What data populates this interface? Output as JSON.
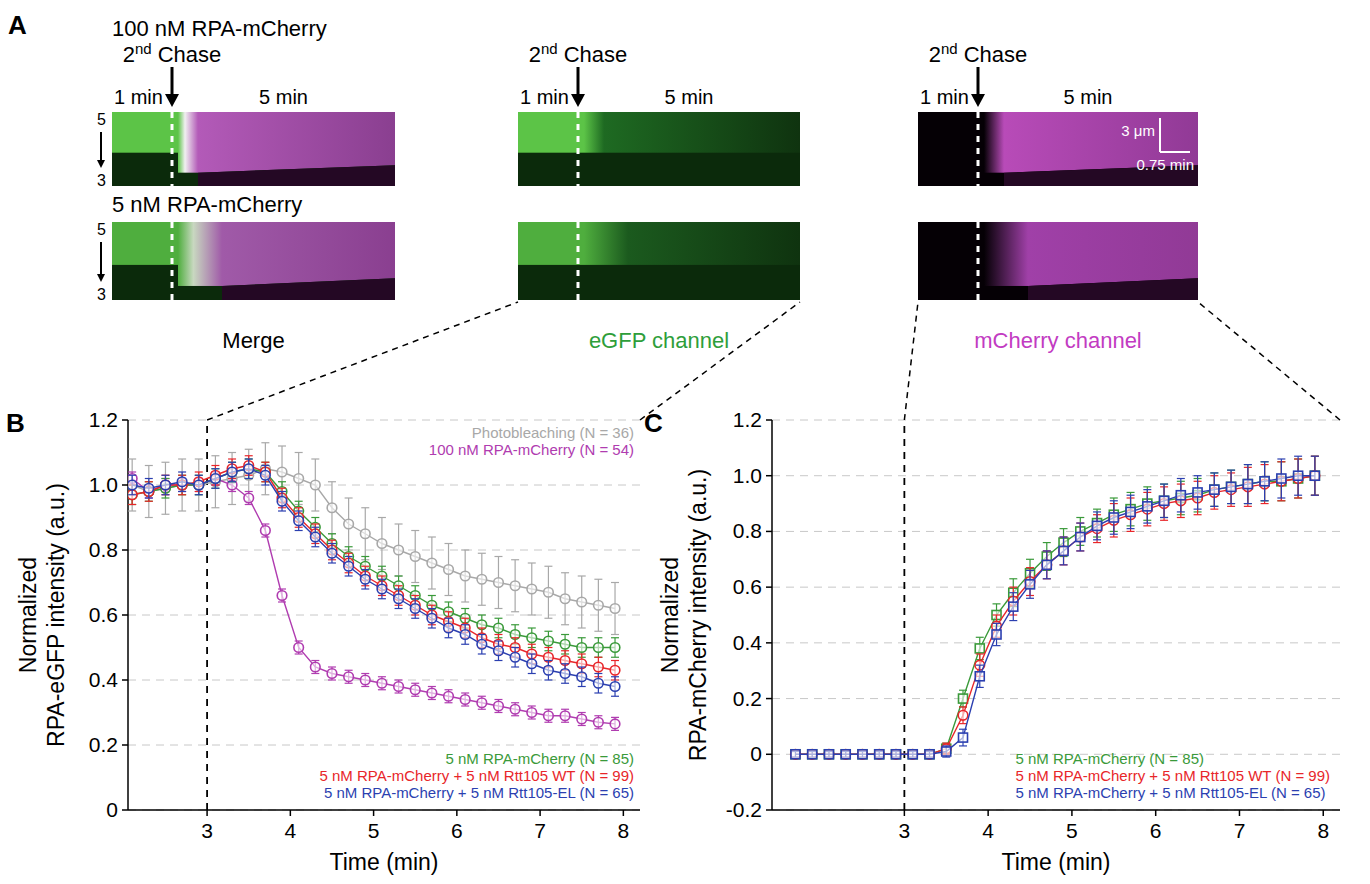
{
  "panel_a": {
    "letter": "A",
    "rows": [
      {
        "title": "100 nM RPA-mCherry"
      },
      {
        "title": "5 nM RPA-mCherry"
      }
    ],
    "columns": [
      {
        "label": "Merge",
        "color": "#000000"
      },
      {
        "label": "eGFP channel",
        "color": "#2e9e3a"
      },
      {
        "label": "mCherry channel",
        "color": "#c23bc2"
      }
    ],
    "chase_label": "2nd Chase",
    "before_label": "1 min",
    "after_label": "5 min",
    "position_top": 5,
    "position_bottom": 3,
    "scale_bar": {
      "length_label": "3 μm",
      "time_label": "0.75 min"
    }
  },
  "chart_data": [
    {
      "type": "line",
      "panel_label": "B",
      "ylabel": "Normalized RPA-eGFP intensity (a.u.)",
      "xlabel": "Time (min)",
      "x": [
        2.1,
        2.3,
        2.5,
        2.7,
        2.9,
        3.1,
        3.3,
        3.5,
        3.7,
        3.9,
        4.1,
        4.3,
        4.5,
        4.7,
        4.9,
        5.1,
        5.3,
        5.5,
        5.7,
        5.9,
        6.1,
        6.3,
        6.5,
        6.7,
        6.9,
        7.1,
        7.3,
        7.5,
        7.7,
        7.9
      ],
      "xlim": [
        2.05,
        8.2
      ],
      "xticks": [
        3,
        4,
        5,
        6,
        7,
        8
      ],
      "ylim": [
        0,
        1.2
      ],
      "yticks": [
        0,
        0.2,
        0.4,
        0.6,
        0.8,
        {
          "value": 1,
          "label": "1.0"
        },
        1.2
      ],
      "grid": true,
      "legend": "right",
      "marker": "circle",
      "vline": 3,
      "series": [
        {
          "name": "Photobleaching (N = 36)",
          "color": "#a8a8a8",
          "values": [
            1.0,
            0.98,
            0.99,
            1.0,
            1.0,
            1.01,
            1.02,
            1.03,
            1.05,
            1.04,
            1.02,
            1.0,
            0.93,
            0.88,
            0.85,
            0.82,
            0.8,
            0.78,
            0.76,
            0.74,
            0.72,
            0.71,
            0.7,
            0.69,
            0.68,
            0.67,
            0.65,
            0.64,
            0.63,
            0.62
          ],
          "errors": [
            0.08,
            0.08,
            0.08,
            0.08,
            0.08,
            0.08,
            0.08,
            0.08,
            0.08,
            0.08,
            0.08,
            0.08,
            0.08,
            0.08,
            0.08,
            0.08,
            0.08,
            0.08,
            0.08,
            0.08,
            0.08,
            0.08,
            0.08,
            0.08,
            0.08,
            0.08,
            0.08,
            0.08,
            0.08,
            0.08
          ]
        },
        {
          "name": "100 nM RPA-mCherry (N = 54)",
          "color": "#b03cb0",
          "values": [
            1.02,
            0.98,
            1.0,
            1.0,
            1.0,
            1.02,
            1.0,
            0.96,
            0.86,
            0.66,
            0.5,
            0.44,
            0.42,
            0.41,
            0.4,
            0.39,
            0.38,
            0.37,
            0.36,
            0.35,
            0.34,
            0.33,
            0.32,
            0.31,
            0.3,
            0.29,
            0.29,
            0.28,
            0.27,
            0.265
          ],
          "errors": [
            0.02,
            0.02,
            0.02,
            0.02,
            0.02,
            0.02,
            0.02,
            0.02,
            0.02,
            0.02,
            0.02,
            0.02,
            0.02,
            0.02,
            0.02,
            0.02,
            0.02,
            0.02,
            0.02,
            0.02,
            0.02,
            0.02,
            0.02,
            0.02,
            0.02,
            0.02,
            0.02,
            0.02,
            0.02,
            0.02
          ]
        },
        {
          "name": "5 nM RPA-mCherry (N = 85)",
          "color": "#3a9a3a",
          "values": [
            0.97,
            0.98,
            0.99,
            1.0,
            1.0,
            1.02,
            1.04,
            1.05,
            1.04,
            0.98,
            0.92,
            0.87,
            0.82,
            0.78,
            0.75,
            0.72,
            0.69,
            0.66,
            0.63,
            0.61,
            0.59,
            0.57,
            0.56,
            0.54,
            0.53,
            0.52,
            0.51,
            0.5,
            0.5,
            0.5
          ],
          "errors": [
            0.03,
            0.03,
            0.03,
            0.03,
            0.03,
            0.03,
            0.03,
            0.03,
            0.03,
            0.03,
            0.03,
            0.03,
            0.03,
            0.03,
            0.03,
            0.03,
            0.03,
            0.03,
            0.03,
            0.03,
            0.03,
            0.03,
            0.03,
            0.03,
            0.03,
            0.03,
            0.03,
            0.03,
            0.03,
            0.03
          ]
        },
        {
          "name": "5 nM RPA-mCherry + 5 nM Rtt105 WT (N = 99)",
          "color": "#e8262a",
          "values": [
            0.97,
            0.98,
            1.0,
            1.0,
            1.01,
            1.03,
            1.05,
            1.06,
            1.04,
            0.96,
            0.9,
            0.85,
            0.8,
            0.76,
            0.72,
            0.69,
            0.66,
            0.63,
            0.6,
            0.58,
            0.56,
            0.53,
            0.51,
            0.5,
            0.48,
            0.47,
            0.46,
            0.45,
            0.44,
            0.43
          ],
          "errors": [
            0.03,
            0.03,
            0.03,
            0.03,
            0.03,
            0.03,
            0.03,
            0.03,
            0.03,
            0.03,
            0.03,
            0.03,
            0.03,
            0.03,
            0.03,
            0.03,
            0.03,
            0.03,
            0.03,
            0.03,
            0.03,
            0.03,
            0.03,
            0.03,
            0.03,
            0.03,
            0.03,
            0.03,
            0.03,
            0.03
          ]
        },
        {
          "name": "5 nM RPA-mCherry + 5 nM Rtt105-EL (N = 65)",
          "color": "#2b3fb0",
          "values": [
            1.0,
            0.99,
            1.0,
            1.01,
            1.0,
            1.02,
            1.04,
            1.05,
            1.03,
            0.95,
            0.89,
            0.84,
            0.79,
            0.75,
            0.71,
            0.68,
            0.65,
            0.62,
            0.59,
            0.56,
            0.54,
            0.51,
            0.49,
            0.47,
            0.45,
            0.43,
            0.42,
            0.41,
            0.39,
            0.38
          ],
          "errors": [
            0.03,
            0.03,
            0.03,
            0.03,
            0.03,
            0.03,
            0.03,
            0.03,
            0.03,
            0.03,
            0.03,
            0.03,
            0.03,
            0.03,
            0.03,
            0.03,
            0.03,
            0.03,
            0.03,
            0.03,
            0.03,
            0.03,
            0.03,
            0.03,
            0.03,
            0.03,
            0.03,
            0.03,
            0.03,
            0.03
          ]
        }
      ]
    },
    {
      "type": "line",
      "panel_label": "C",
      "ylabel": "Normalized RPA-mCherry intensity (a.u.)",
      "xlabel": "Time (min)",
      "x": [
        1.7,
        1.9,
        2.1,
        2.3,
        2.5,
        2.7,
        2.9,
        3.1,
        3.3,
        3.5,
        3.7,
        3.9,
        4.1,
        4.3,
        4.5,
        4.7,
        4.9,
        5.1,
        5.3,
        5.5,
        5.7,
        5.9,
        6.1,
        6.3,
        6.5,
        6.7,
        6.9,
        7.1,
        7.3,
        7.5,
        7.7,
        7.9
      ],
      "xlim": [
        1.42,
        8.2
      ],
      "xticks": [
        3,
        4,
        5,
        6,
        7,
        8
      ],
      "ylim": [
        -0.2,
        1.2
      ],
      "yticks": [
        -0.2,
        0,
        0.2,
        0.4,
        0.6,
        0.8,
        {
          "value": 1,
          "label": "1.0"
        },
        1.2
      ],
      "grid": true,
      "legend": "bottom right",
      "vline": 3,
      "series": [
        {
          "name": "5 nM RPA-mCherry (N = 85)",
          "color": "#3a9a3a",
          "marker": "square",
          "values": [
            0,
            0,
            0,
            0,
            0,
            0,
            0,
            0,
            0,
            0.02,
            0.2,
            0.38,
            0.5,
            0.58,
            0.65,
            0.71,
            0.76,
            0.8,
            0.83,
            0.86,
            0.88,
            0.9,
            0.91,
            0.92,
            0.93,
            0.95,
            0.96,
            0.97,
            0.98,
            0.98,
            0.99,
            1.0
          ],
          "errors": [
            0.01,
            0.01,
            0.01,
            0.01,
            0.01,
            0.01,
            0.01,
            0.01,
            0.01,
            0.02,
            0.03,
            0.04,
            0.04,
            0.05,
            0.05,
            0.05,
            0.05,
            0.05,
            0.05,
            0.06,
            0.06,
            0.06,
            0.06,
            0.06,
            0.06,
            0.06,
            0.06,
            0.07,
            0.07,
            0.07,
            0.07,
            0.07
          ]
        },
        {
          "name": "5 nM RPA-mCherry + 5 nM Rtt105 WT (N = 99)",
          "color": "#e8262a",
          "marker": "circle",
          "values": [
            0,
            0,
            0,
            0,
            0,
            0,
            0,
            0,
            0,
            0.02,
            0.14,
            0.32,
            0.46,
            0.55,
            0.62,
            0.68,
            0.73,
            0.78,
            0.81,
            0.84,
            0.86,
            0.88,
            0.9,
            0.91,
            0.92,
            0.94,
            0.95,
            0.96,
            0.97,
            0.98,
            0.99,
            1.0
          ],
          "errors": [
            0.01,
            0.01,
            0.01,
            0.01,
            0.01,
            0.01,
            0.01,
            0.01,
            0.01,
            0.02,
            0.03,
            0.04,
            0.04,
            0.05,
            0.05,
            0.05,
            0.05,
            0.05,
            0.05,
            0.06,
            0.06,
            0.06,
            0.06,
            0.06,
            0.06,
            0.06,
            0.06,
            0.07,
            0.07,
            0.07,
            0.07,
            0.07
          ]
        },
        {
          "name": "5 nM RPA-mCherry + 5 nM Rtt105-EL (N = 65)",
          "color": "#2b3fb0",
          "marker": "square",
          "values": [
            0,
            0,
            0,
            0,
            0,
            0,
            0,
            0,
            0,
            0.01,
            0.06,
            0.28,
            0.43,
            0.53,
            0.61,
            0.68,
            0.73,
            0.78,
            0.82,
            0.85,
            0.87,
            0.89,
            0.91,
            0.93,
            0.94,
            0.95,
            0.96,
            0.97,
            0.98,
            0.99,
            1.0,
            1.0
          ],
          "errors": [
            0.01,
            0.01,
            0.01,
            0.01,
            0.01,
            0.01,
            0.01,
            0.01,
            0.01,
            0.02,
            0.03,
            0.04,
            0.04,
            0.05,
            0.05,
            0.05,
            0.05,
            0.05,
            0.05,
            0.06,
            0.06,
            0.06,
            0.06,
            0.06,
            0.06,
            0.06,
            0.06,
            0.07,
            0.07,
            0.07,
            0.07,
            0.07
          ]
        }
      ]
    }
  ]
}
